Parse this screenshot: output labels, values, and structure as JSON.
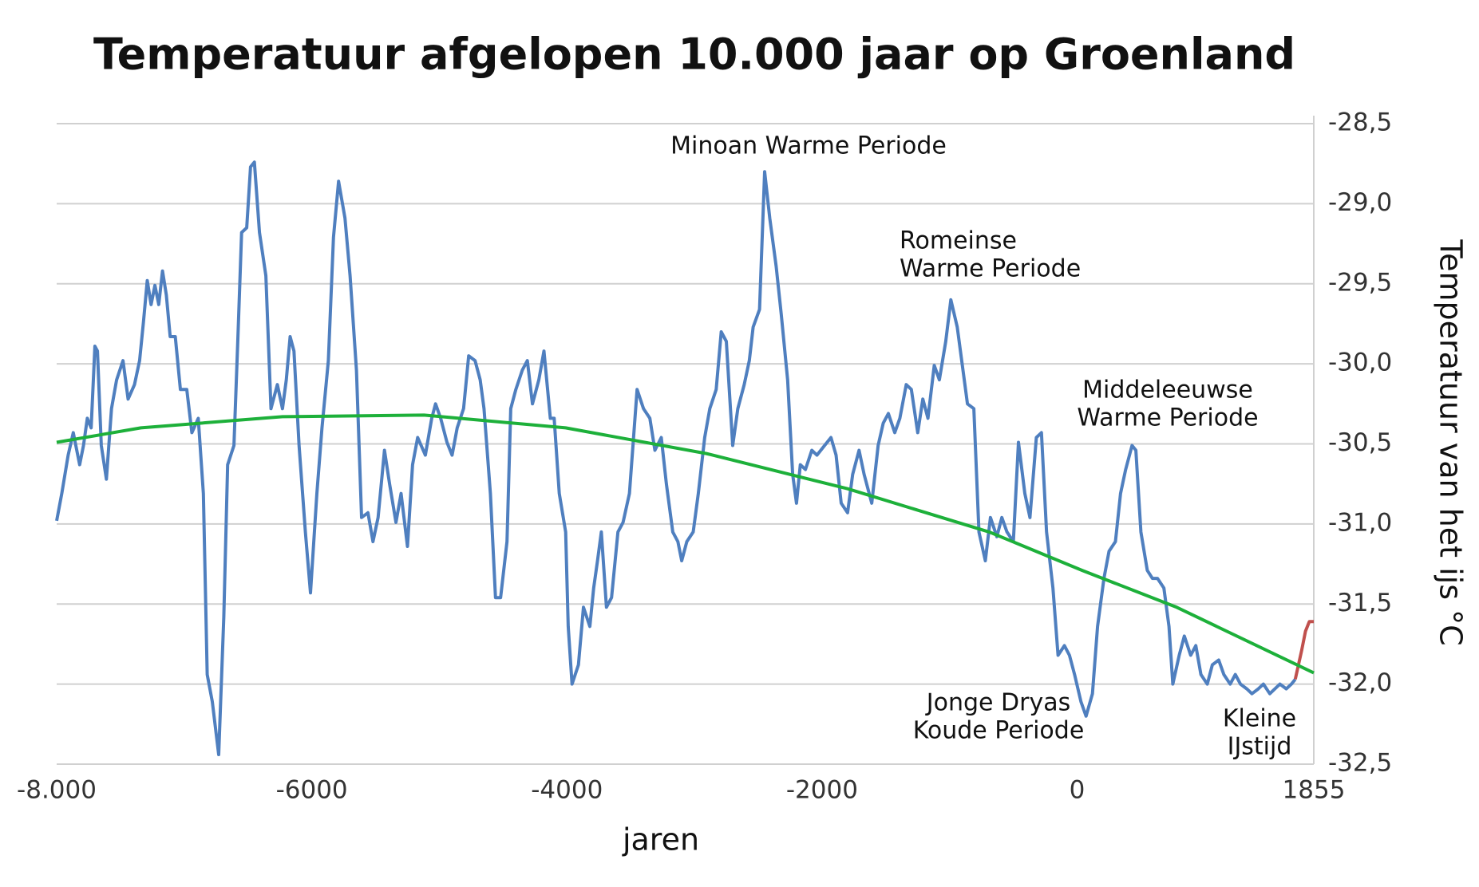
{
  "chart_data": {
    "type": "line",
    "title": "Temperatuur afgelopen 10.000 jaar op Groenland",
    "x_label": "jaren",
    "y_label": "Temperatuur van het ijs °C",
    "xlim": [
      -8000,
      1855
    ],
    "xticks": [
      {
        "value": -8000,
        "label": "-8.000"
      },
      -6000,
      -4000,
      -2000,
      0,
      1855
    ],
    "ylim": [
      -32.5,
      -28.5
    ],
    "yticks": [
      {
        "value": -28.5,
        "label": "-28,5"
      },
      {
        "value": -29,
        "label": "-29,0"
      },
      {
        "value": -29.5,
        "label": "-29,5"
      },
      {
        "value": -30,
        "label": "-30,0"
      },
      {
        "value": -30.5,
        "label": "-30,5"
      },
      {
        "value": -31,
        "label": "-31,0"
      },
      {
        "value": -31.5,
        "label": "-31,5"
      },
      {
        "value": -32,
        "label": "-32,0"
      },
      {
        "value": -32.5,
        "label": "-32,5"
      }
    ],
    "grid": true,
    "y_axis_side": "right",
    "annotations": [
      [
        "Minoan Warme Periode"
      ],
      [
        "Romeinse",
        "Warme Periode"
      ],
      [
        "Middeleeuwse",
        "Warme Periode"
      ],
      [
        "Jonge Dryas",
        "Koude Periode"
      ],
      [
        "Kleine",
        "IJstijd"
      ]
    ],
    "series": [
      {
        "color": "#4f7fbf",
        "x": [
          -8000,
          -7960,
          -7910,
          -7870,
          -7820,
          -7790,
          -7760,
          -7730,
          -7700,
          -7680,
          -7650,
          -7610,
          -7570,
          -7530,
          -7480,
          -7440,
          -7390,
          -7350,
          -7320,
          -7290,
          -7260,
          -7230,
          -7200,
          -7170,
          -7140,
          -7110,
          -7070,
          -7030,
          -6980,
          -6940,
          -6890,
          -6850,
          -6820,
          -6780,
          -6730,
          -6690,
          -6660,
          -6610,
          -6580,
          -6550,
          -6510,
          -6480,
          -6450,
          -6410,
          -6360,
          -6320,
          -6270,
          -6230,
          -6200,
          -6170,
          -6140,
          -6100,
          -6050,
          -6010,
          -5960,
          -5920,
          -5870,
          -5830,
          -5790,
          -5740,
          -5700,
          -5650,
          -5610,
          -5560,
          -5520,
          -5480,
          -5430,
          -5390,
          -5340,
          -5300,
          -5250,
          -5210,
          -5170,
          -5110,
          -5060,
          -5030,
          -4990,
          -4940,
          -4900,
          -4860,
          -4810,
          -4770,
          -4720,
          -4680,
          -4650,
          -4600,
          -4560,
          -4520,
          -4470,
          -4440,
          -4400,
          -4350,
          -4310,
          -4270,
          -4220,
          -4180,
          -4130,
          -4100,
          -4060,
          -4010,
          -3990,
          -3960,
          -3910,
          -3870,
          -3820,
          -3790,
          -3760,
          -3730,
          -3690,
          -3650,
          -3600,
          -3560,
          -3510,
          -3450,
          -3400,
          -3350,
          -3310,
          -3260,
          -3220,
          -3170,
          -3130,
          -3100,
          -3060,
          -3010,
          -2970,
          -2920,
          -2880,
          -2830,
          -2790,
          -2750,
          -2700,
          -2660,
          -2610,
          -2570,
          -2540,
          -2490,
          -2450,
          -2410,
          -2360,
          -2320,
          -2270,
          -2230,
          -2200,
          -2170,
          -2130,
          -2080,
          -2040,
          -1980,
          -1930,
          -1890,
          -1850,
          -1800,
          -1760,
          -1710,
          -1670,
          -1610,
          -1560,
          -1520,
          -1480,
          -1430,
          -1390,
          -1340,
          -1300,
          -1250,
          -1210,
          -1170,
          -1120,
          -1080,
          -1030,
          -990,
          -940,
          -900,
          -860,
          -810,
          -770,
          -720,
          -680,
          -630,
          -590,
          -550,
          -500,
          -460,
          -410,
          -370,
          -320,
          -280,
          -240,
          -190,
          -150,
          -100,
          -60,
          -20,
          30,
          70,
          120,
          160,
          210,
          250,
          300,
          340,
          380,
          430,
          460,
          500,
          550,
          590,
          630,
          680,
          720,
          750,
          800,
          840,
          890,
          930,
          970,
          1020,
          1060,
          1110,
          1150,
          1200,
          1240,
          1280,
          1330,
          1370,
          1420,
          1460,
          1510,
          1550,
          1590,
          1640,
          1680,
          1710
        ],
        "values": [
          -30.98,
          -30.81,
          -30.57,
          -30.43,
          -30.63,
          -30.51,
          -30.34,
          -30.4,
          -29.89,
          -29.92,
          -30.51,
          -30.72,
          -30.28,
          -30.1,
          -29.98,
          -30.22,
          -30.13,
          -29.98,
          -29.74,
          -29.48,
          -29.63,
          -29.51,
          -29.63,
          -29.42,
          -29.57,
          -29.83,
          -29.83,
          -30.16,
          -30.16,
          -30.43,
          -30.34,
          -30.81,
          -31.94,
          -32.11,
          -32.44,
          -31.58,
          -30.63,
          -30.51,
          -29.86,
          -29.18,
          -29.15,
          -28.77,
          -28.74,
          -29.18,
          -29.45,
          -30.28,
          -30.13,
          -30.28,
          -30.1,
          -29.83,
          -29.92,
          -30.51,
          -31.05,
          -31.43,
          -30.81,
          -30.4,
          -29.98,
          -29.21,
          -28.86,
          -29.09,
          -29.45,
          -30.04,
          -30.96,
          -30.93,
          -31.11,
          -30.96,
          -30.54,
          -30.75,
          -30.99,
          -30.81,
          -31.14,
          -30.63,
          -30.46,
          -30.57,
          -30.34,
          -30.25,
          -30.34,
          -30.49,
          -30.57,
          -30.4,
          -30.28,
          -29.95,
          -29.98,
          -30.1,
          -30.28,
          -30.81,
          -31.46,
          -31.46,
          -31.11,
          -30.28,
          -30.16,
          -30.04,
          -29.98,
          -30.25,
          -30.1,
          -29.92,
          -30.34,
          -30.34,
          -30.81,
          -31.05,
          -31.64,
          -32.0,
          -31.88,
          -31.52,
          -31.64,
          -31.4,
          -31.23,
          -31.05,
          -31.52,
          -31.46,
          -31.05,
          -30.99,
          -30.81,
          -30.16,
          -30.28,
          -30.34,
          -30.54,
          -30.46,
          -30.75,
          -31.05,
          -31.11,
          -31.23,
          -31.11,
          -31.05,
          -30.81,
          -30.46,
          -30.28,
          -30.16,
          -29.8,
          -29.86,
          -30.51,
          -30.28,
          -30.13,
          -29.98,
          -29.77,
          -29.66,
          -28.8,
          -29.09,
          -29.39,
          -29.69,
          -30.1,
          -30.69,
          -30.87,
          -30.63,
          -30.66,
          -30.54,
          -30.57,
          -30.51,
          -30.46,
          -30.57,
          -30.87,
          -30.93,
          -30.69,
          -30.54,
          -30.69,
          -30.87,
          -30.51,
          -30.37,
          -30.31,
          -30.43,
          -30.34,
          -30.13,
          -30.16,
          -30.43,
          -30.22,
          -30.34,
          -30.01,
          -30.1,
          -29.86,
          -29.6,
          -29.77,
          -30.01,
          -30.25,
          -30.28,
          -31.05,
          -31.23,
          -30.96,
          -31.08,
          -30.96,
          -31.05,
          -31.11,
          -30.49,
          -30.81,
          -30.96,
          -30.46,
          -30.43,
          -31.05,
          -31.4,
          -31.82,
          -31.76,
          -31.82,
          -31.94,
          -32.11,
          -32.2,
          -32.06,
          -31.64,
          -31.34,
          -31.17,
          -31.11,
          -30.81,
          -30.66,
          -30.51,
          -30.54,
          -31.05,
          -31.29,
          -31.34,
          -31.34,
          -31.4,
          -31.64,
          -32.0,
          -31.82,
          -31.7,
          -31.82,
          -31.76,
          -31.94,
          -32.0,
          -31.88,
          -31.85,
          -31.94,
          -32.0,
          -31.94,
          -32.0,
          -32.03,
          -32.06,
          -32.03,
          -32.0,
          -32.06,
          -32.03,
          -32.0,
          -32.03,
          -32.0,
          -31.97
        ]
      },
      {
        "color": "#c0504d",
        "x": [
          1710,
          1760,
          1790,
          1820,
          1855
        ],
        "values": [
          -31.97,
          -31.79,
          -31.67,
          -31.61,
          -31.61
        ]
      },
      {
        "color": "#1db03a",
        "x": [
          -8000,
          -7340,
          -6230,
          -5120,
          -4010,
          -2910,
          -1800,
          -690,
          40,
          780,
          1855
        ],
        "values": [
          -30.49,
          -30.4,
          -30.33,
          -30.32,
          -30.4,
          -30.56,
          -30.78,
          -31.05,
          -31.29,
          -31.52,
          -31.93
        ]
      }
    ]
  }
}
